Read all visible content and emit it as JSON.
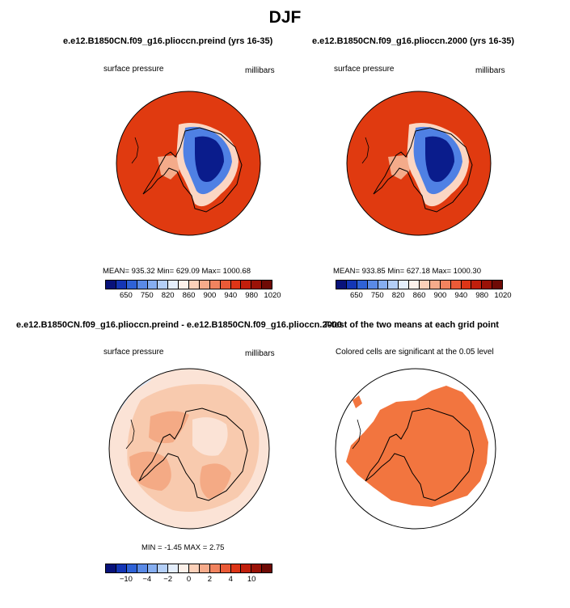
{
  "title": "DJF",
  "panels": {
    "p1": {
      "title": "e.e12.B1850CN.f09_g16.plioccn.preind (yrs 16-35)",
      "left_label": "surface pressure",
      "right_label": "millibars",
      "stats": "MEAN= 935.32   Min= 629.09   Max= 1000.68"
    },
    "p2": {
      "title": "e.e12.B1850CN.f09_g16.plioccn.2000 (yrs 16-35)",
      "left_label": "surface pressure",
      "right_label": "millibars",
      "stats": "MEAN= 933.85   Min= 627.18   Max= 1000.30"
    },
    "p3": {
      "title": "e.e12.B1850CN.f09_g16.plioccn.preind - e.e12.B1850CN.f09_g16.plioccn.2000",
      "left_label": "surface pressure",
      "right_label": "millibars",
      "stats": "MIN =   -1.45  MAX =    2.75"
    },
    "p4": {
      "title": "T-test of the two means at each grid point",
      "label": "Colored cells are significant at the 0.05 level"
    }
  },
  "colorbar_abs": {
    "ticks": [
      "650",
      "750",
      "820",
      "860",
      "900",
      "940",
      "980",
      "1020"
    ],
    "colors": [
      "#08127a",
      "#1436b5",
      "#2f62d6",
      "#5a8ae6",
      "#86aef0",
      "#b4cff7",
      "#e4eefc",
      "#fdf1ea",
      "#fbd0b9",
      "#f6ab8b",
      "#f1835f",
      "#ea5a37",
      "#dd3517",
      "#c11f0c",
      "#9a1207",
      "#6e0a05"
    ]
  },
  "colorbar_diff": {
    "ticks": [
      "−10",
      "−4",
      "−2",
      "0",
      "2",
      "4",
      "10"
    ],
    "colors": [
      "#08127a",
      "#1436b5",
      "#2f62d6",
      "#5a8ae6",
      "#86aef0",
      "#b4cff7",
      "#e4eefc",
      "#fdf1ea",
      "#fbd0b9",
      "#f6ab8b",
      "#f1835f",
      "#ea5a37",
      "#dd3517",
      "#c11f0c",
      "#9a1207",
      "#6e0a05"
    ]
  },
  "map_colors": {
    "ocean_high": "#e03a10",
    "antarctic_low": "#0a1c8c",
    "diff_background": "#fbe3d6",
    "diff_mid": "#f8caae",
    "diff_high": "#f4aa85",
    "diff_negative": "#dde8f8",
    "ttest_fill": "#f2753f"
  }
}
